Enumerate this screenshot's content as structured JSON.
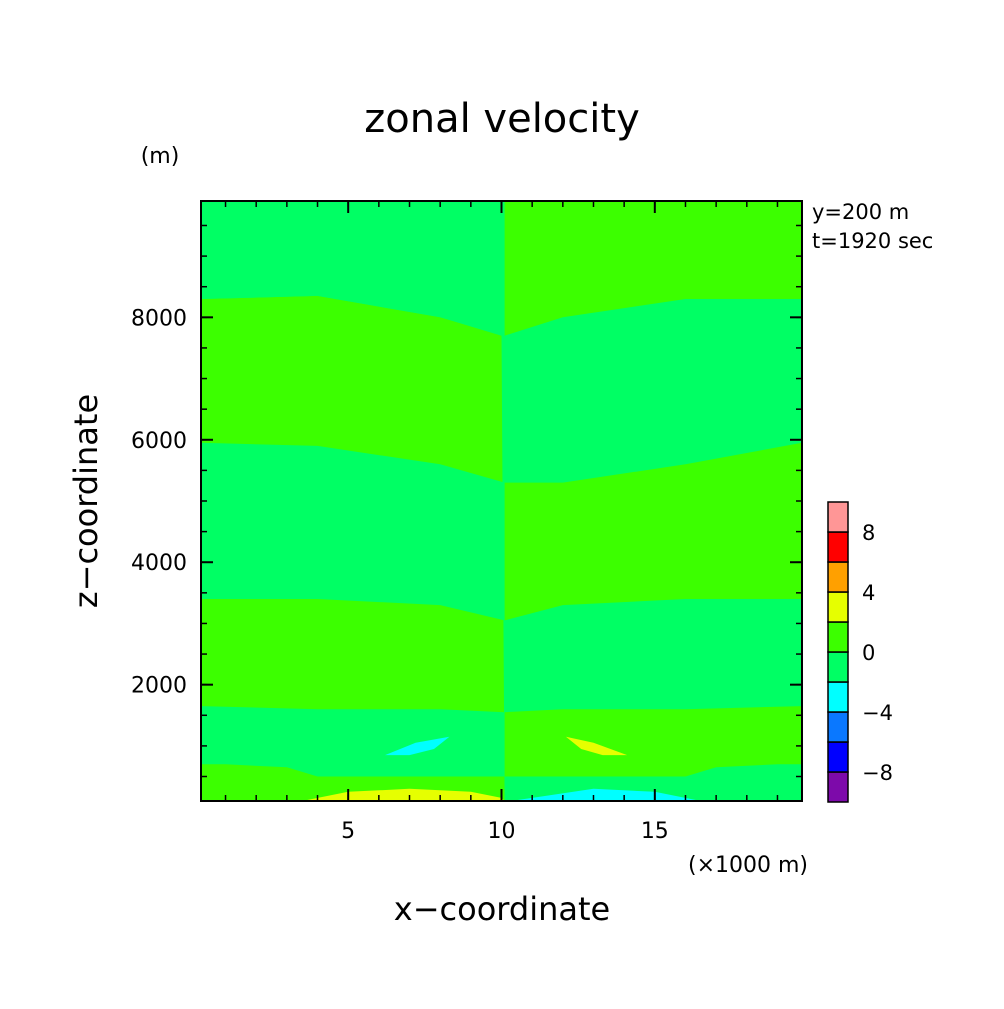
{
  "chart_data": {
    "type": "heatmap",
    "title": "zonal velocity",
    "xlabel": "x−coordinate",
    "ylabel": "z−coordinate",
    "x_unit": "(×1000 m)",
    "y_unit": "(m)",
    "annotation": [
      "y=200 m",
      "t=1920 sec"
    ],
    "xlim": [
      0.2,
      19.8
    ],
    "ylim": [
      100,
      9900
    ],
    "x_ticks": [
      5,
      10,
      15
    ],
    "y_ticks": [
      2000,
      4000,
      6000,
      8000
    ],
    "colorbar": {
      "levels": [
        -10,
        -8,
        -6,
        -4,
        -2,
        0,
        2,
        4,
        6,
        8,
        10
      ],
      "tick_labels": [
        "8",
        "4",
        "0",
        "−4",
        "−8"
      ],
      "tick_values": [
        8,
        4,
        0,
        -4,
        -8
      ],
      "colors": [
        "#7d0aaa",
        "#0000ff",
        "#0a78ff",
        "#00ffff",
        "#00ff64",
        "#3cff00",
        "#e6ff00",
        "#ffa000",
        "#ff0000",
        "#ff9696"
      ]
    },
    "regions": [
      {
        "level": "0..2",
        "color": "#3cff00",
        "path": [
          [
            0.2,
            8300
          ],
          [
            4,
            8350
          ],
          [
            8,
            8000
          ],
          [
            10,
            7700
          ],
          [
            10.1,
            100
          ],
          [
            8,
            100
          ],
          [
            0.2,
            100
          ]
        ]
      },
      {
        "level": "-2..0",
        "color": "#00ff64",
        "path": [
          [
            0.2,
            9900
          ],
          [
            10.1,
            9900
          ],
          [
            10.1,
            7700
          ],
          [
            8,
            8000
          ],
          [
            4,
            8350
          ],
          [
            0.2,
            8300
          ]
        ]
      },
      {
        "level": "-2..0",
        "color": "#00ff64",
        "path": [
          [
            0.2,
            5950
          ],
          [
            4,
            5900
          ],
          [
            8,
            5600
          ],
          [
            10.1,
            5300
          ],
          [
            10.1,
            3050
          ],
          [
            8,
            3300
          ],
          [
            4,
            3400
          ],
          [
            0.2,
            3400
          ]
        ]
      },
      {
        "level": "-2..0",
        "color": "#00ff64",
        "path": [
          [
            0.2,
            1650
          ],
          [
            4,
            1600
          ],
          [
            8,
            1600
          ],
          [
            10.1,
            1550
          ],
          [
            10.1,
            500
          ],
          [
            8,
            500
          ],
          [
            4,
            500
          ],
          [
            3,
            650
          ],
          [
            1,
            700
          ],
          [
            0.2,
            700
          ]
        ]
      },
      {
        "level": "0..2",
        "color": "#3cff00",
        "path": [
          [
            10.1,
            9900
          ],
          [
            19.8,
            9900
          ],
          [
            19.8,
            8300
          ],
          [
            16,
            8300
          ],
          [
            12,
            8000
          ],
          [
            10.1,
            7700
          ]
        ]
      },
      {
        "level": "0..2",
        "color": "#3cff00",
        "path": [
          [
            10.1,
            5300
          ],
          [
            12,
            5300
          ],
          [
            16,
            5600
          ],
          [
            19.8,
            5950
          ],
          [
            19.8,
            3400
          ],
          [
            16,
            3400
          ],
          [
            12,
            3300
          ],
          [
            10.1,
            3050
          ]
        ]
      },
      {
        "level": "0..2",
        "color": "#3cff00",
        "path": [
          [
            10.1,
            1550
          ],
          [
            12,
            1600
          ],
          [
            16,
            1600
          ],
          [
            19.8,
            1650
          ],
          [
            19.8,
            700
          ],
          [
            19,
            700
          ],
          [
            17,
            650
          ],
          [
            16,
            500
          ],
          [
            12,
            500
          ],
          [
            10.1,
            500
          ]
        ]
      },
      {
        "level": "-4..-2",
        "color": "#00ffff",
        "path": [
          [
            6.2,
            850
          ],
          [
            7.2,
            1050
          ],
          [
            8.3,
            1150
          ],
          [
            7.8,
            950
          ],
          [
            7,
            850
          ]
        ]
      },
      {
        "level": "2..4",
        "color": "#e6ff00",
        "path": [
          [
            12.1,
            1150
          ],
          [
            13,
            1050
          ],
          [
            14.1,
            850
          ],
          [
            13.3,
            850
          ],
          [
            12.6,
            950
          ]
        ]
      },
      {
        "level": "2..4",
        "color": "#e6ff00",
        "path": [
          [
            3.5,
            100
          ],
          [
            5,
            250
          ],
          [
            7,
            300
          ],
          [
            9,
            250
          ],
          [
            10,
            150
          ],
          [
            10.1,
            100
          ]
        ]
      },
      {
        "level": "-4..-2",
        "color": "#00ffff",
        "path": [
          [
            10.3,
            100
          ],
          [
            11,
            150
          ],
          [
            13,
            300
          ],
          [
            15,
            250
          ],
          [
            16.5,
            100
          ]
        ]
      }
    ]
  }
}
